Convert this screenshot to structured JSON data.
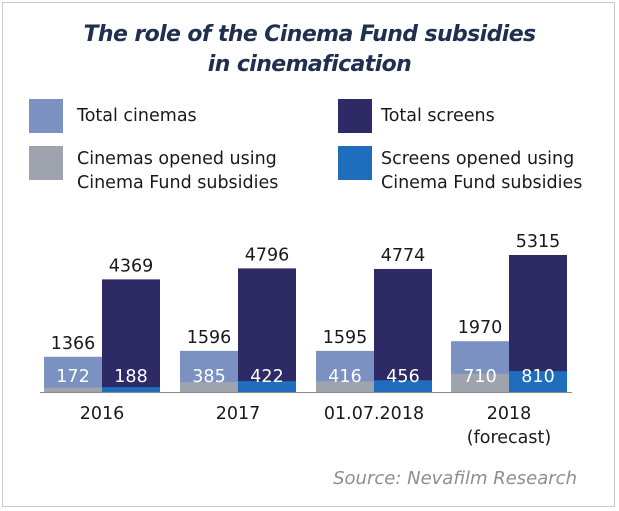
{
  "chart_data": {
    "type": "bar",
    "title": "The role of the Cinema Fund subsidies in cinemafication",
    "title_lines": [
      "The role of the Cinema Fund subsidies",
      "in cinemafication"
    ],
    "categories": [
      "2016",
      "2017",
      "01.07.2018",
      "2018 (forecast)"
    ],
    "category_lines": [
      [
        "2016"
      ],
      [
        "2017"
      ],
      [
        "01.07.2018"
      ],
      [
        "2018",
        "(forecast)"
      ]
    ],
    "series": [
      {
        "name": "Total cinemas",
        "values": [
          1366,
          1596,
          1595,
          1970
        ],
        "color": "#7a91c2"
      },
      {
        "name": "Total screens",
        "values": [
          4369,
          4796,
          4774,
          5315
        ],
        "color": "#2d2a66"
      },
      {
        "name": "Cinemas opened using Cinema Fund subsidies",
        "values": [
          172,
          385,
          416,
          710
        ],
        "color": "#9ea3ad"
      },
      {
        "name": "Screens opened using Cinema Fund subsidies",
        "values": [
          188,
          422,
          456,
          810
        ],
        "color": "#1f6ebd"
      }
    ],
    "legend_lines": [
      [
        "Total cinemas"
      ],
      [
        "Total screens"
      ],
      [
        "Cinemas opened using",
        "Cinema Fund subsidies"
      ],
      [
        "Screens opened using",
        "Cinema Fund subsidies"
      ]
    ],
    "xlabel": "",
    "ylabel": "",
    "ylim": [
      0,
      5315
    ],
    "grid": false,
    "source": "Source: Nevafilm Research"
  }
}
